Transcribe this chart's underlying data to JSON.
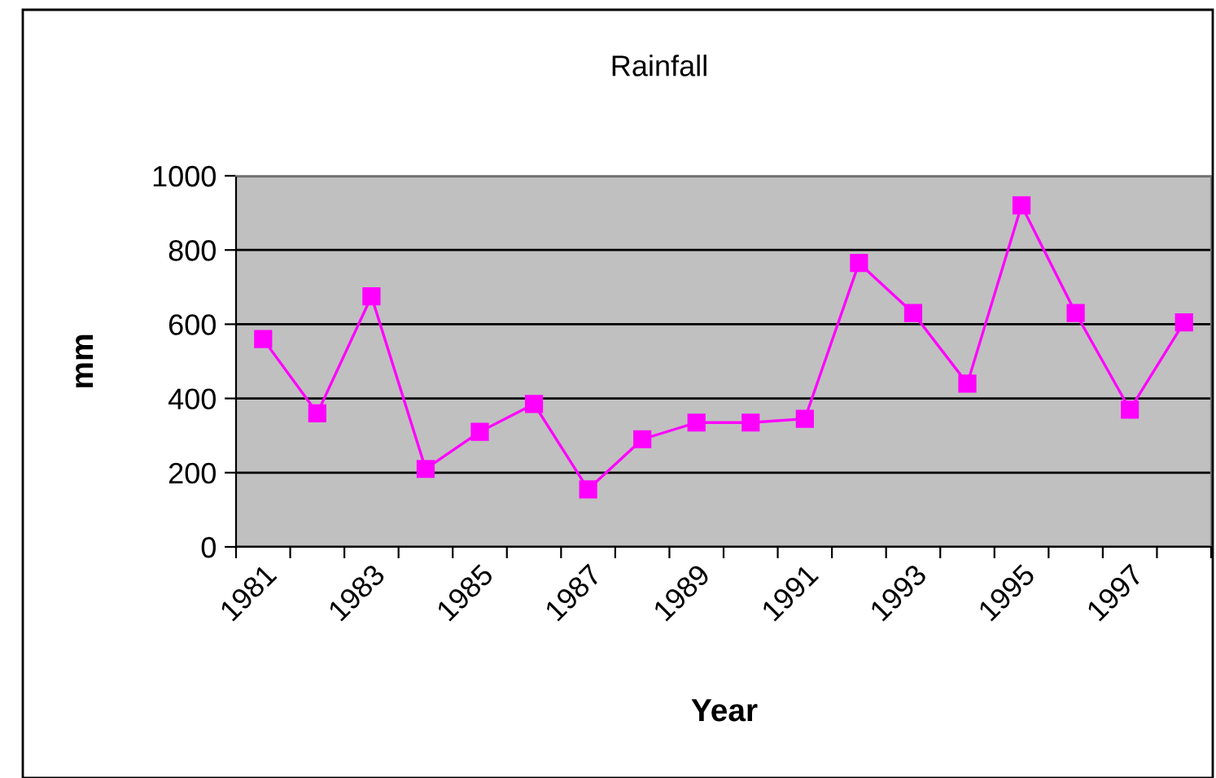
{
  "chart_data": {
    "type": "line",
    "title": "Rainfall",
    "xlabel": "Year",
    "ylabel": "mm",
    "categories": [
      "1981",
      null,
      "1983",
      null,
      "1985",
      null,
      "1987",
      null,
      "1989",
      null,
      "1991",
      null,
      "1993",
      null,
      "1995",
      null,
      "1997",
      null
    ],
    "series": [
      {
        "color": "#ff00ff",
        "values": [
          560,
          360,
          675,
          210,
          310,
          385,
          155,
          290,
          335,
          335,
          345,
          765,
          630,
          440,
          920,
          630,
          370,
          605
        ]
      }
    ],
    "ylim": [
      0,
      1000
    ],
    "yticks": [
      0,
      200,
      400,
      600,
      800,
      1000
    ],
    "grid": "y",
    "marker": "square",
    "line_style": "solid"
  }
}
